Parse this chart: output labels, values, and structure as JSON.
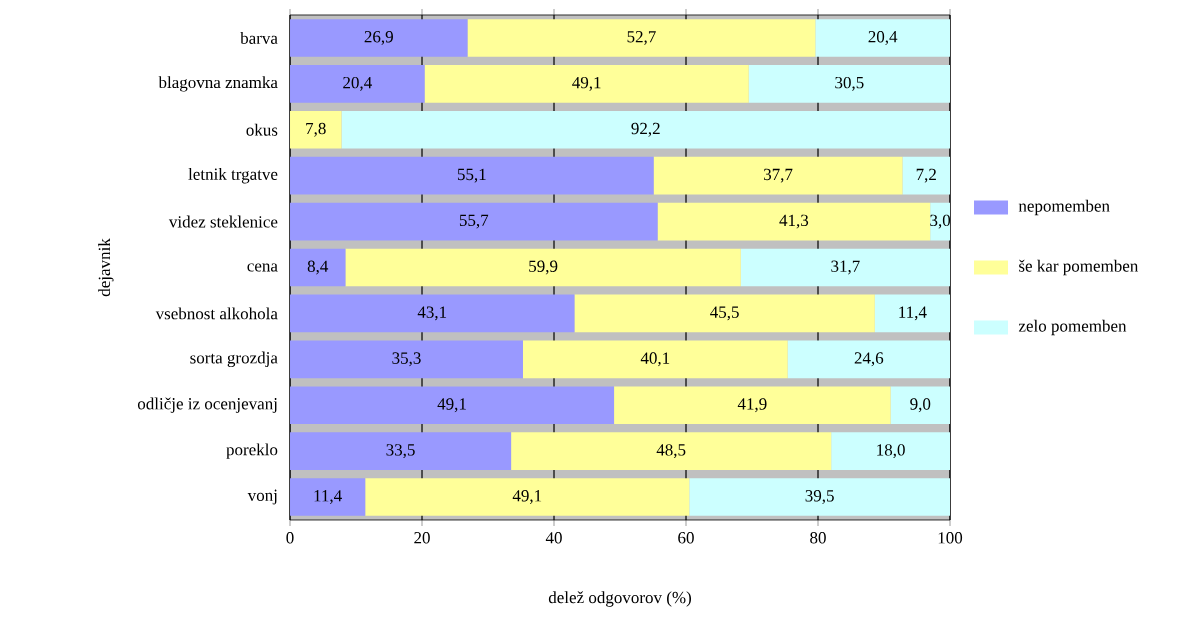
{
  "chart_data": {
    "type": "bar",
    "orientation": "horizontal",
    "stacked": true,
    "xlabel": "delež odgovorov (%)",
    "ylabel": "dejavnik",
    "categories": [
      "barva",
      "blagovna znamka",
      "okus",
      "letnik trgatve",
      "videz steklenice",
      "cena",
      "vsebnost alkohola",
      "sorta grozdja",
      "odličje iz ocenjevanj",
      "poreklo",
      "vonj"
    ],
    "series": [
      {
        "name": "nepomemben",
        "color": "#9999ff",
        "values": [
          26.9,
          20.4,
          0,
          55.1,
          55.7,
          8.4,
          43.1,
          35.3,
          49.1,
          33.5,
          11.4
        ],
        "value_labels": [
          "26,9",
          "20,4",
          null,
          "55,1",
          "55,7",
          "8,4",
          "43,1",
          "35,3",
          "49,1",
          "33,5",
          "11,4"
        ]
      },
      {
        "name": "še kar pomemben",
        "color": "#ffff99",
        "values": [
          52.7,
          49.1,
          7.8,
          37.7,
          41.3,
          59.9,
          45.5,
          40.1,
          41.9,
          48.5,
          49.1
        ],
        "value_labels": [
          "52,7",
          "49,1",
          "7,8",
          "37,7",
          "41,3",
          "59,9",
          "45,5",
          "40,1",
          "41,9",
          "48,5",
          "49,1"
        ]
      },
      {
        "name": "zelo pomemben",
        "color": "#ccffff",
        "values": [
          20.4,
          30.5,
          92.2,
          7.2,
          3.0,
          31.7,
          11.4,
          24.6,
          9.0,
          18.0,
          39.5
        ],
        "value_labels": [
          "20,4",
          "30,5",
          "92,2",
          "7,2",
          "3,0",
          "31,7",
          "11,4",
          "24,6",
          "9,0",
          "18,0",
          "39,5"
        ]
      }
    ],
    "xlim": [
      0,
      100
    ],
    "xticks": [
      0,
      20,
      40,
      60,
      80,
      100
    ],
    "grid": "x",
    "legend": "right"
  }
}
